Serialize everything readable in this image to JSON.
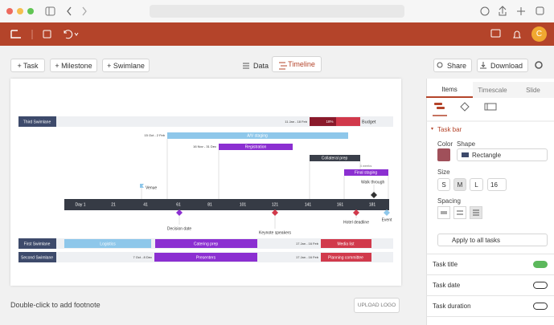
{
  "app_bar": {
    "avatar": "C"
  },
  "toolbar": {
    "add_task": "+ Task",
    "add_milestone": "+ Milestone",
    "add_swimlane": "+ Swimlane",
    "data_tab": "Data",
    "timeline_tab": "Timeline",
    "share": "Share",
    "download": "Download"
  },
  "timeline": {
    "swimlanes": [
      "Third Swimlane",
      "First Swimlane",
      "Second Swimlane"
    ],
    "tasks": [
      {
        "label": "Budget",
        "date": "11 Jan - 18 Feb",
        "progress": "18%"
      },
      {
        "label": "A/V staging",
        "date": "15 Oct - 2 Feb"
      },
      {
        "label": "Registration",
        "date": "16 Nov - 31 Dec"
      },
      {
        "label": "Collateral prep"
      },
      {
        "label": "Final staging",
        "duration": "4 weeks"
      },
      {
        "label": "Logistics"
      },
      {
        "label": "Catering prep"
      },
      {
        "label": "Media list",
        "date": "17 Jan - 16 Feb"
      },
      {
        "label": "Presenters",
        "date": "7 Oct - 8 Dec"
      },
      {
        "label": "Planning committee",
        "date": "17 Jan - 16 Feb"
      }
    ],
    "milestones": [
      "Venue",
      "Walk through",
      "Decision date",
      "Keynote speakers",
      "Hotel deadline",
      "Event"
    ],
    "timescale": [
      "Day 1",
      "21",
      "41",
      "61",
      "81",
      "101",
      "121",
      "141",
      "161",
      "181"
    ]
  },
  "footnote": "Double-click to add footnote",
  "upload_logo": "UPLOAD LOGO",
  "panel": {
    "tabs": [
      "Items",
      "Timescale",
      "Slide"
    ],
    "section": "Task bar",
    "color_label": "Color",
    "shape_label": "Shape",
    "shape": "Rectangle",
    "size_label": "Size",
    "sizes": [
      "S",
      "M",
      "L"
    ],
    "size_value": "16",
    "spacing_label": "Spacing",
    "apply": "Apply to all tasks",
    "options": [
      "Task title",
      "Task date",
      "Task duration"
    ]
  }
}
